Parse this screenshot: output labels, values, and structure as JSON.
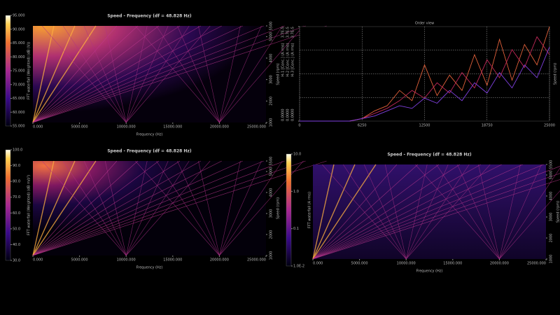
{
  "chart_data": [
    {
      "type": "spectrogram",
      "title": "Speed - Frequency (df = 48.828 Hz)",
      "xlabel": "Frequency (Hz)",
      "ylabel": "Speed (rpm)",
      "colorbar_label": "FFT waterfall (Weighted) (dB (V))",
      "xlim": [
        0,
        25000
      ],
      "xticks": [
        {
          "value": 0,
          "label": "0.000"
        },
        {
          "value": 5000,
          "label": "5000.000"
        },
        {
          "value": 10000,
          "label": "10000.000"
        },
        {
          "value": 15000,
          "label": "15000.000"
        },
        {
          "value": 20000,
          "label": "20000.000"
        },
        {
          "value": 25000,
          "label": "25000.000"
        }
      ],
      "ylim": [
        1000,
        5500
      ],
      "yticks": [
        1000,
        2000,
        3000,
        4000,
        5000,
        5500
      ],
      "clim": [
        55,
        95
      ],
      "cticks": [
        {
          "value": 55,
          "label": "55.000"
        },
        {
          "value": 60,
          "label": "60.000"
        },
        {
          "value": 65,
          "label": "65.000"
        },
        {
          "value": 70,
          "label": "70.000"
        },
        {
          "value": 75,
          "label": "75.000"
        },
        {
          "value": 80,
          "label": "80.000"
        },
        {
          "value": 85,
          "label": "85.000"
        },
        {
          "value": 90,
          "label": "90.000"
        },
        {
          "value": 95,
          "label": "95.000"
        }
      ],
      "clog": false
    },
    {
      "type": "line",
      "title": "Order view",
      "ylabel": "Speed (rpm)",
      "x": [
        0,
        1250,
        2500,
        3750,
        5000,
        6250,
        7500,
        8750,
        10000,
        11250,
        12500,
        13750,
        15000,
        16250,
        17500,
        18750,
        20000,
        21250,
        22500,
        23750,
        25000
      ],
      "xlim": [
        0,
        25000
      ],
      "xticks": [
        0,
        6250,
        12500,
        18750,
        25000
      ],
      "ylim": [
        0,
        3.7e-05
      ],
      "yticks": [
        {
          "value": 0,
          "label": "0.0000"
        },
        {
          "value": 3.7e-05,
          "label": "3.7E-5"
        }
      ],
      "series": [
        {
          "name": "H-1 [Conc.] (A rms)",
          "color": "#e0603a",
          "values": [
            0,
            0,
            0,
            0,
            0,
            1e-06,
            4e-06,
            6e-06,
            1.2e-05,
            8e-06,
            2.2e-05,
            1e-05,
            1.8e-05,
            1.2e-05,
            2.6e-05,
            1.4e-05,
            3.2e-05,
            1.6e-05,
            3e-05,
            2.2e-05,
            3.7e-05
          ]
        },
        {
          "name": "H-2 [Conc.] (A rms)",
          "color": "#c02858",
          "values": [
            0,
            0,
            0,
            0,
            0,
            1e-06,
            3e-06,
            5e-06,
            8e-06,
            1.2e-05,
            9e-06,
            1.5e-05,
            1.1e-05,
            1.9e-05,
            1.3e-05,
            2.4e-05,
            1.7e-05,
            2.8e-05,
            2.1e-05,
            3.3e-05,
            2.6e-05
          ]
        },
        {
          "name": "H-3 [Conc.] (A rms)",
          "color": "#8040e0",
          "values": [
            0,
            0,
            0,
            0,
            0,
            1e-06,
            2e-06,
            4e-06,
            6e-06,
            5e-06,
            9e-06,
            7e-06,
            1.2e-05,
            8e-06,
            1.5e-05,
            1.1e-05,
            1.9e-05,
            1.3e-05,
            2.2e-05,
            1.7e-05,
            2.9e-05
          ]
        }
      ]
    },
    {
      "type": "spectrogram",
      "title": "Speed - Frequency (df = 48.828 Hz)",
      "xlabel": "Frequency (Hz)",
      "ylabel": "Speed (rpm)",
      "colorbar_label": "FFT waterfall (Weighted) (dB m/s²)",
      "xlim": [
        0,
        25000
      ],
      "xticks": [
        {
          "value": 0,
          "label": "0.000"
        },
        {
          "value": 5000,
          "label": "5000.000"
        },
        {
          "value": 10000,
          "label": "10000.000"
        },
        {
          "value": 15000,
          "label": "15000.000"
        },
        {
          "value": 20000,
          "label": "20000.000"
        },
        {
          "value": 25000,
          "label": "25000.000"
        }
      ],
      "ylim": [
        1000,
        5500
      ],
      "yticks": [
        1000,
        2000,
        3000,
        4000,
        5000,
        5500
      ],
      "clim": [
        30,
        100
      ],
      "cticks": [
        {
          "value": 30,
          "label": "30.0"
        },
        {
          "value": 40,
          "label": "40.0"
        },
        {
          "value": 50,
          "label": "50.0"
        },
        {
          "value": 60,
          "label": "60.0"
        },
        {
          "value": 70,
          "label": "70.0"
        },
        {
          "value": 80,
          "label": "80.0"
        },
        {
          "value": 90,
          "label": "90.0"
        },
        {
          "value": 100,
          "label": "100.0"
        }
      ],
      "clog": false
    },
    {
      "type": "spectrogram",
      "title": "Speed - Frequency (df = 48.828 Hz)",
      "xlabel": "Frequency (Hz)",
      "ylabel": "Speed (rpm)",
      "colorbar_label": "FFT waterfall (A rms)",
      "xlim": [
        0,
        25000
      ],
      "xticks": [
        {
          "value": 0,
          "label": "0.000"
        },
        {
          "value": 5000,
          "label": "5000.000"
        },
        {
          "value": 10000,
          "label": "10000.000"
        },
        {
          "value": 15000,
          "label": "15000.000"
        },
        {
          "value": 20000,
          "label": "20000.000"
        },
        {
          "value": 25000,
          "label": "25000.000"
        }
      ],
      "ylim": [
        1000,
        5500
      ],
      "yticks": [
        1000,
        2000,
        3000,
        4000,
        5000,
        5500
      ],
      "clim": [
        0.01,
        10
      ],
      "cticks": [
        {
          "value": 0.01,
          "label": "1.0E-2"
        },
        {
          "value": 0.1,
          "label": "0.1"
        },
        {
          "value": 1,
          "label": "1.0"
        },
        {
          "value": 10,
          "label": "10.0"
        }
      ],
      "clog": true
    }
  ]
}
